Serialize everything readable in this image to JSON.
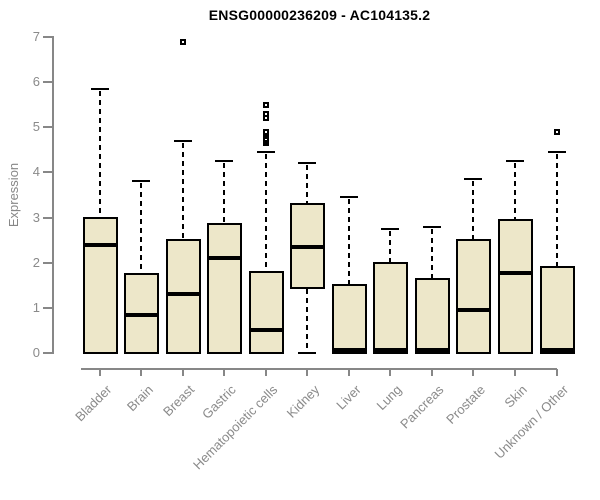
{
  "title": "ENSG00000236209 - AC104135.2",
  "chart_data": {
    "type": "boxplot",
    "title": "ENSG00000236209 - AC104135.2",
    "xlabel": "",
    "ylabel": "Expression",
    "ylim": [
      0,
      7
    ],
    "yticks": [
      0,
      1,
      2,
      3,
      4,
      5,
      6,
      7
    ],
    "grid": false,
    "legend": "none",
    "box_fill_color": "#ede7c9",
    "box_border_color": "#000000",
    "axis_color": "#878787",
    "categories": [
      "Bladder",
      "Brain",
      "Breast",
      "Gastric",
      "Hematopoietic cells",
      "Kidney",
      "Liver",
      "Lung",
      "Pancreas",
      "Prostate",
      "Skin",
      "Unknown / Other"
    ],
    "series": [
      {
        "category": "Bladder",
        "whisker_low": 0,
        "q1": 0,
        "median": 2.4,
        "q3": 3.0,
        "whisker_high": 5.85,
        "outliers": []
      },
      {
        "category": "Brain",
        "whisker_low": 0,
        "q1": 0,
        "median": 0.85,
        "q3": 1.75,
        "whisker_high": 3.8,
        "outliers": []
      },
      {
        "category": "Breast",
        "whisker_low": 0,
        "q1": 0,
        "median": 1.3,
        "q3": 2.5,
        "whisker_high": 4.7,
        "outliers": [
          6.9
        ]
      },
      {
        "category": "Gastric",
        "whisker_low": 0,
        "q1": 0,
        "median": 2.1,
        "q3": 2.85,
        "whisker_high": 4.25,
        "outliers": []
      },
      {
        "category": "Hematopoietic cells",
        "whisker_low": 0,
        "q1": 0,
        "median": 0.5,
        "q3": 1.8,
        "whisker_high": 4.45,
        "outliers": [
          4.65,
          4.7,
          4.75,
          4.8,
          4.85,
          4.9,
          5.2,
          5.3,
          5.5
        ]
      },
      {
        "category": "Kidney",
        "whisker_low": 0,
        "q1": 1.45,
        "median": 2.35,
        "q3": 3.3,
        "whisker_high": 4.2,
        "outliers": []
      },
      {
        "category": "Liver",
        "whisker_low": 0,
        "q1": 0,
        "median": 0.03,
        "q3": 1.5,
        "whisker_high": 3.45,
        "outliers": []
      },
      {
        "category": "Lung",
        "whisker_low": 0,
        "q1": 0,
        "median": 0.03,
        "q3": 2.0,
        "whisker_high": 2.75,
        "outliers": []
      },
      {
        "category": "Pancreas",
        "whisker_low": 0,
        "q1": 0,
        "median": 0.03,
        "q3": 1.65,
        "whisker_high": 2.8,
        "outliers": []
      },
      {
        "category": "Prostate",
        "whisker_low": 0,
        "q1": 0,
        "median": 0.95,
        "q3": 2.5,
        "whisker_high": 3.85,
        "outliers": []
      },
      {
        "category": "Skin",
        "whisker_low": 0,
        "q1": 0,
        "median": 1.78,
        "q3": 2.95,
        "whisker_high": 4.25,
        "outliers": []
      },
      {
        "category": "Unknown / Other",
        "whisker_low": 0,
        "q1": 0,
        "median": 0.03,
        "q3": 1.9,
        "whisker_high": 4.45,
        "outliers": [
          4.9
        ]
      }
    ]
  }
}
